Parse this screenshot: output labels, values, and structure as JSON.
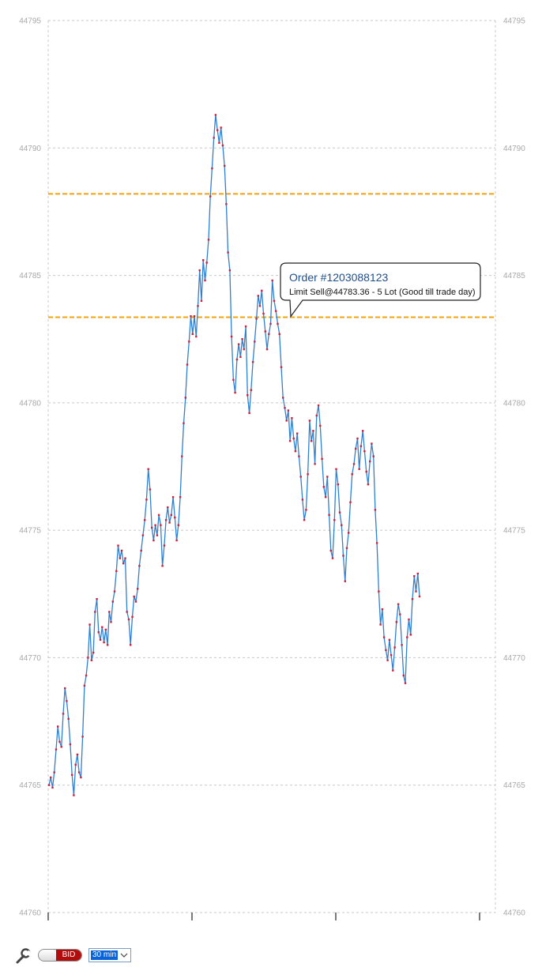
{
  "chart_data": {
    "type": "line",
    "title": "",
    "xlabel": "",
    "ylabel": "",
    "ylim": [
      44760,
      44795
    ],
    "yticks": [
      44760,
      44765,
      44770,
      44775,
      44780,
      44785,
      44790,
      44795
    ],
    "grid": true,
    "series": [
      {
        "values": [
          44765.0,
          44765.3,
          44764.9,
          44765.5,
          44766.4,
          44767.3,
          44766.7,
          44766.5,
          44767.8,
          44768.8,
          44768.3,
          44767.6,
          44766.6,
          44765.4,
          44764.6,
          44765.8,
          44766.2,
          44765.5,
          44765.3,
          44766.9,
          44768.9,
          44769.3,
          44770.0,
          44771.3,
          44769.9,
          44770.2,
          44771.8,
          44772.3,
          44771.0,
          44770.7,
          44771.2,
          44770.6,
          44771.1,
          44770.5,
          44771.8,
          44771.4,
          44772.2,
          44772.6,
          44773.4,
          44774.4,
          44773.9,
          44774.2,
          44773.7,
          44773.9,
          44771.8,
          44771.5,
          44770.5,
          44771.6,
          44772.4,
          44772.2,
          44772.7,
          44773.6,
          44774.2,
          44774.8,
          44775.4,
          44776.2,
          44777.4,
          44776.6,
          44775.1,
          44774.6,
          44775.2,
          44774.8,
          44775.6,
          44775.2,
          44773.6,
          44774.4,
          44775.4,
          44775.9,
          44775.3,
          44775.6,
          44776.3,
          44775.5,
          44774.6,
          44775.2,
          44776.3,
          44777.9,
          44779.2,
          44780.2,
          44781.5,
          44782.4,
          44783.4,
          44782.7,
          44783.4,
          44782.6,
          44783.8,
          44785.2,
          44784.0,
          44785.6,
          44784.8,
          44785.5,
          44786.4,
          44788.1,
          44789.2,
          44790.4,
          44791.3,
          44790.7,
          44790.2,
          44790.8,
          44790.1,
          44789.3,
          44787.8,
          44785.9,
          44785.2,
          44782.6,
          44780.9,
          44780.4,
          44781.7,
          44782.3,
          44781.8,
          44782.5,
          44782.1,
          44783.0,
          44780.3,
          44779.6,
          44780.5,
          44781.6,
          44782.4,
          44783.3,
          44784.2,
          44783.8,
          44784.4,
          44783.5,
          44782.8,
          44782.1,
          44782.7,
          44783.1,
          44784.8,
          44784.0,
          44783.6,
          44783.1,
          44782.7,
          44781.4,
          44780.2,
          44779.8,
          44779.3,
          44779.7,
          44778.5,
          44779.4,
          44778.6,
          44778.1,
          44778.8,
          44777.9,
          44777.1,
          44776.2,
          44775.4,
          44775.8,
          44777.2,
          44779.3,
          44778.5,
          44778.9,
          44777.6,
          44779.5,
          44779.9,
          44779.1,
          44777.8,
          44776.7,
          44776.3,
          44777.1,
          44775.6,
          44774.2,
          44773.9,
          44775.4,
          44777.4,
          44776.8,
          44775.7,
          44775.2,
          44774.0,
          44773.0,
          44774.3,
          44774.9,
          44776.1,
          44777.2,
          44777.6,
          44778.2,
          44778.6,
          44777.4,
          44778.3,
          44778.9,
          44778.1,
          44777.3,
          44776.8,
          44777.7,
          44778.4,
          44777.9,
          44775.8,
          44774.5,
          44772.6,
          44771.3,
          44771.9,
          44770.8,
          44770.3,
          44769.9,
          44770.7,
          44770.1,
          44769.5,
          44770.4,
          44771.4,
          44772.1,
          44771.7,
          44770.5,
          44769.3,
          44769.0,
          44770.8,
          44771.5,
          44770.9,
          44772.3,
          44773.2,
          44772.6,
          44773.3,
          44772.4
        ]
      }
    ],
    "reference_lines": [
      44788.2,
      44783.36
    ],
    "colors": {
      "line": "#2f80d1",
      "markers": "#d0203a",
      "reference_line": "#f2a20e",
      "grid": "#c8c8c8"
    }
  },
  "order_tooltip": {
    "title": "Order #1203088123",
    "detail": "Limit Sell@44783.36 - 5 Lot (Good till trade day)"
  },
  "toolbar": {
    "settings_icon": "wrench-icon",
    "bid_label": "BID",
    "interval": "30 min"
  }
}
